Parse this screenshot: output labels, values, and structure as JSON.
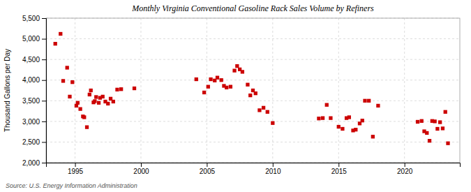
{
  "chart_data": {
    "type": "scatter",
    "title": "Monthly Virginia Conventional Gasoline Rack Sales Volume by Refiners",
    "ylabel": "Thousand Gallons per Day",
    "annotation": "Source: U.S. Energy Information Administration",
    "color": "#cc0000",
    "marker": "square",
    "grid": true,
    "xlim": [
      1992.8,
      2024.2
    ],
    "xticks": [
      1995,
      2000,
      2005,
      2010,
      2015,
      2020
    ],
    "ylim": [
      2000,
      5500
    ],
    "yticks": [
      {
        "value": 2000,
        "label": "2,000"
      },
      {
        "value": 2500,
        "label": "2,500"
      },
      {
        "value": 3000,
        "label": "3,000"
      },
      {
        "value": 3500,
        "label": "3,500"
      },
      {
        "value": 4000,
        "label": "4,000"
      },
      {
        "value": 4500,
        "label": "4,500"
      },
      {
        "value": 5000,
        "label": "5,000"
      },
      {
        "value": 5500,
        "label": "5,500"
      }
    ],
    "x": [
      1993.5,
      1993.9,
      1994.1,
      1994.4,
      1994.6,
      1994.8,
      1995.1,
      1995.2,
      1995.4,
      1995.6,
      1995.7,
      1995.9,
      1996.1,
      1996.2,
      1996.4,
      1996.5,
      1996.6,
      1996.8,
      1996.9,
      1997.1,
      1997.3,
      1997.5,
      1997.7,
      1997.9,
      1998.2,
      1998.5,
      1999.5,
      2004.2,
      2004.8,
      2005.1,
      2005.3,
      2005.6,
      2005.8,
      2006.1,
      2006.3,
      2006.5,
      2006.8,
      2007.1,
      2007.3,
      2007.5,
      2007.7,
      2008.1,
      2008.3,
      2008.5,
      2008.7,
      2009.0,
      2009.3,
      2009.6,
      2010.0,
      2013.5,
      2013.8,
      2014.1,
      2014.4,
      2015.0,
      2015.3,
      2015.6,
      2015.8,
      2016.1,
      2016.3,
      2016.6,
      2016.8,
      2017.0,
      2017.3,
      2017.6,
      2018.0,
      2021.0,
      2021.3,
      2021.5,
      2021.7,
      2021.9,
      2022.1,
      2022.3,
      2022.5,
      2022.7,
      2022.9,
      2023.1,
      2023.3
    ],
    "values": [
      4880,
      5120,
      3980,
      4300,
      3600,
      3950,
      3380,
      3450,
      3300,
      3120,
      3100,
      2860,
      3650,
      3750,
      3460,
      3490,
      3590,
      3450,
      3570,
      3600,
      3480,
      3430,
      3550,
      3480,
      3770,
      3780,
      3800,
      4020,
      3700,
      3840,
      4020,
      3990,
      4060,
      4000,
      3860,
      3820,
      3840,
      4230,
      4340,
      4260,
      4200,
      3890,
      3630,
      3750,
      3680,
      3270,
      3330,
      3230,
      2960,
      3070,
      3080,
      3400,
      3080,
      2870,
      2820,
      3080,
      3100,
      2780,
      2800,
      2950,
      3020,
      3500,
      3500,
      2630,
      3380,
      2990,
      3010,
      2760,
      2720,
      2530,
      3010,
      3000,
      2820,
      2980,
      2830,
      3230,
      2470
    ]
  }
}
